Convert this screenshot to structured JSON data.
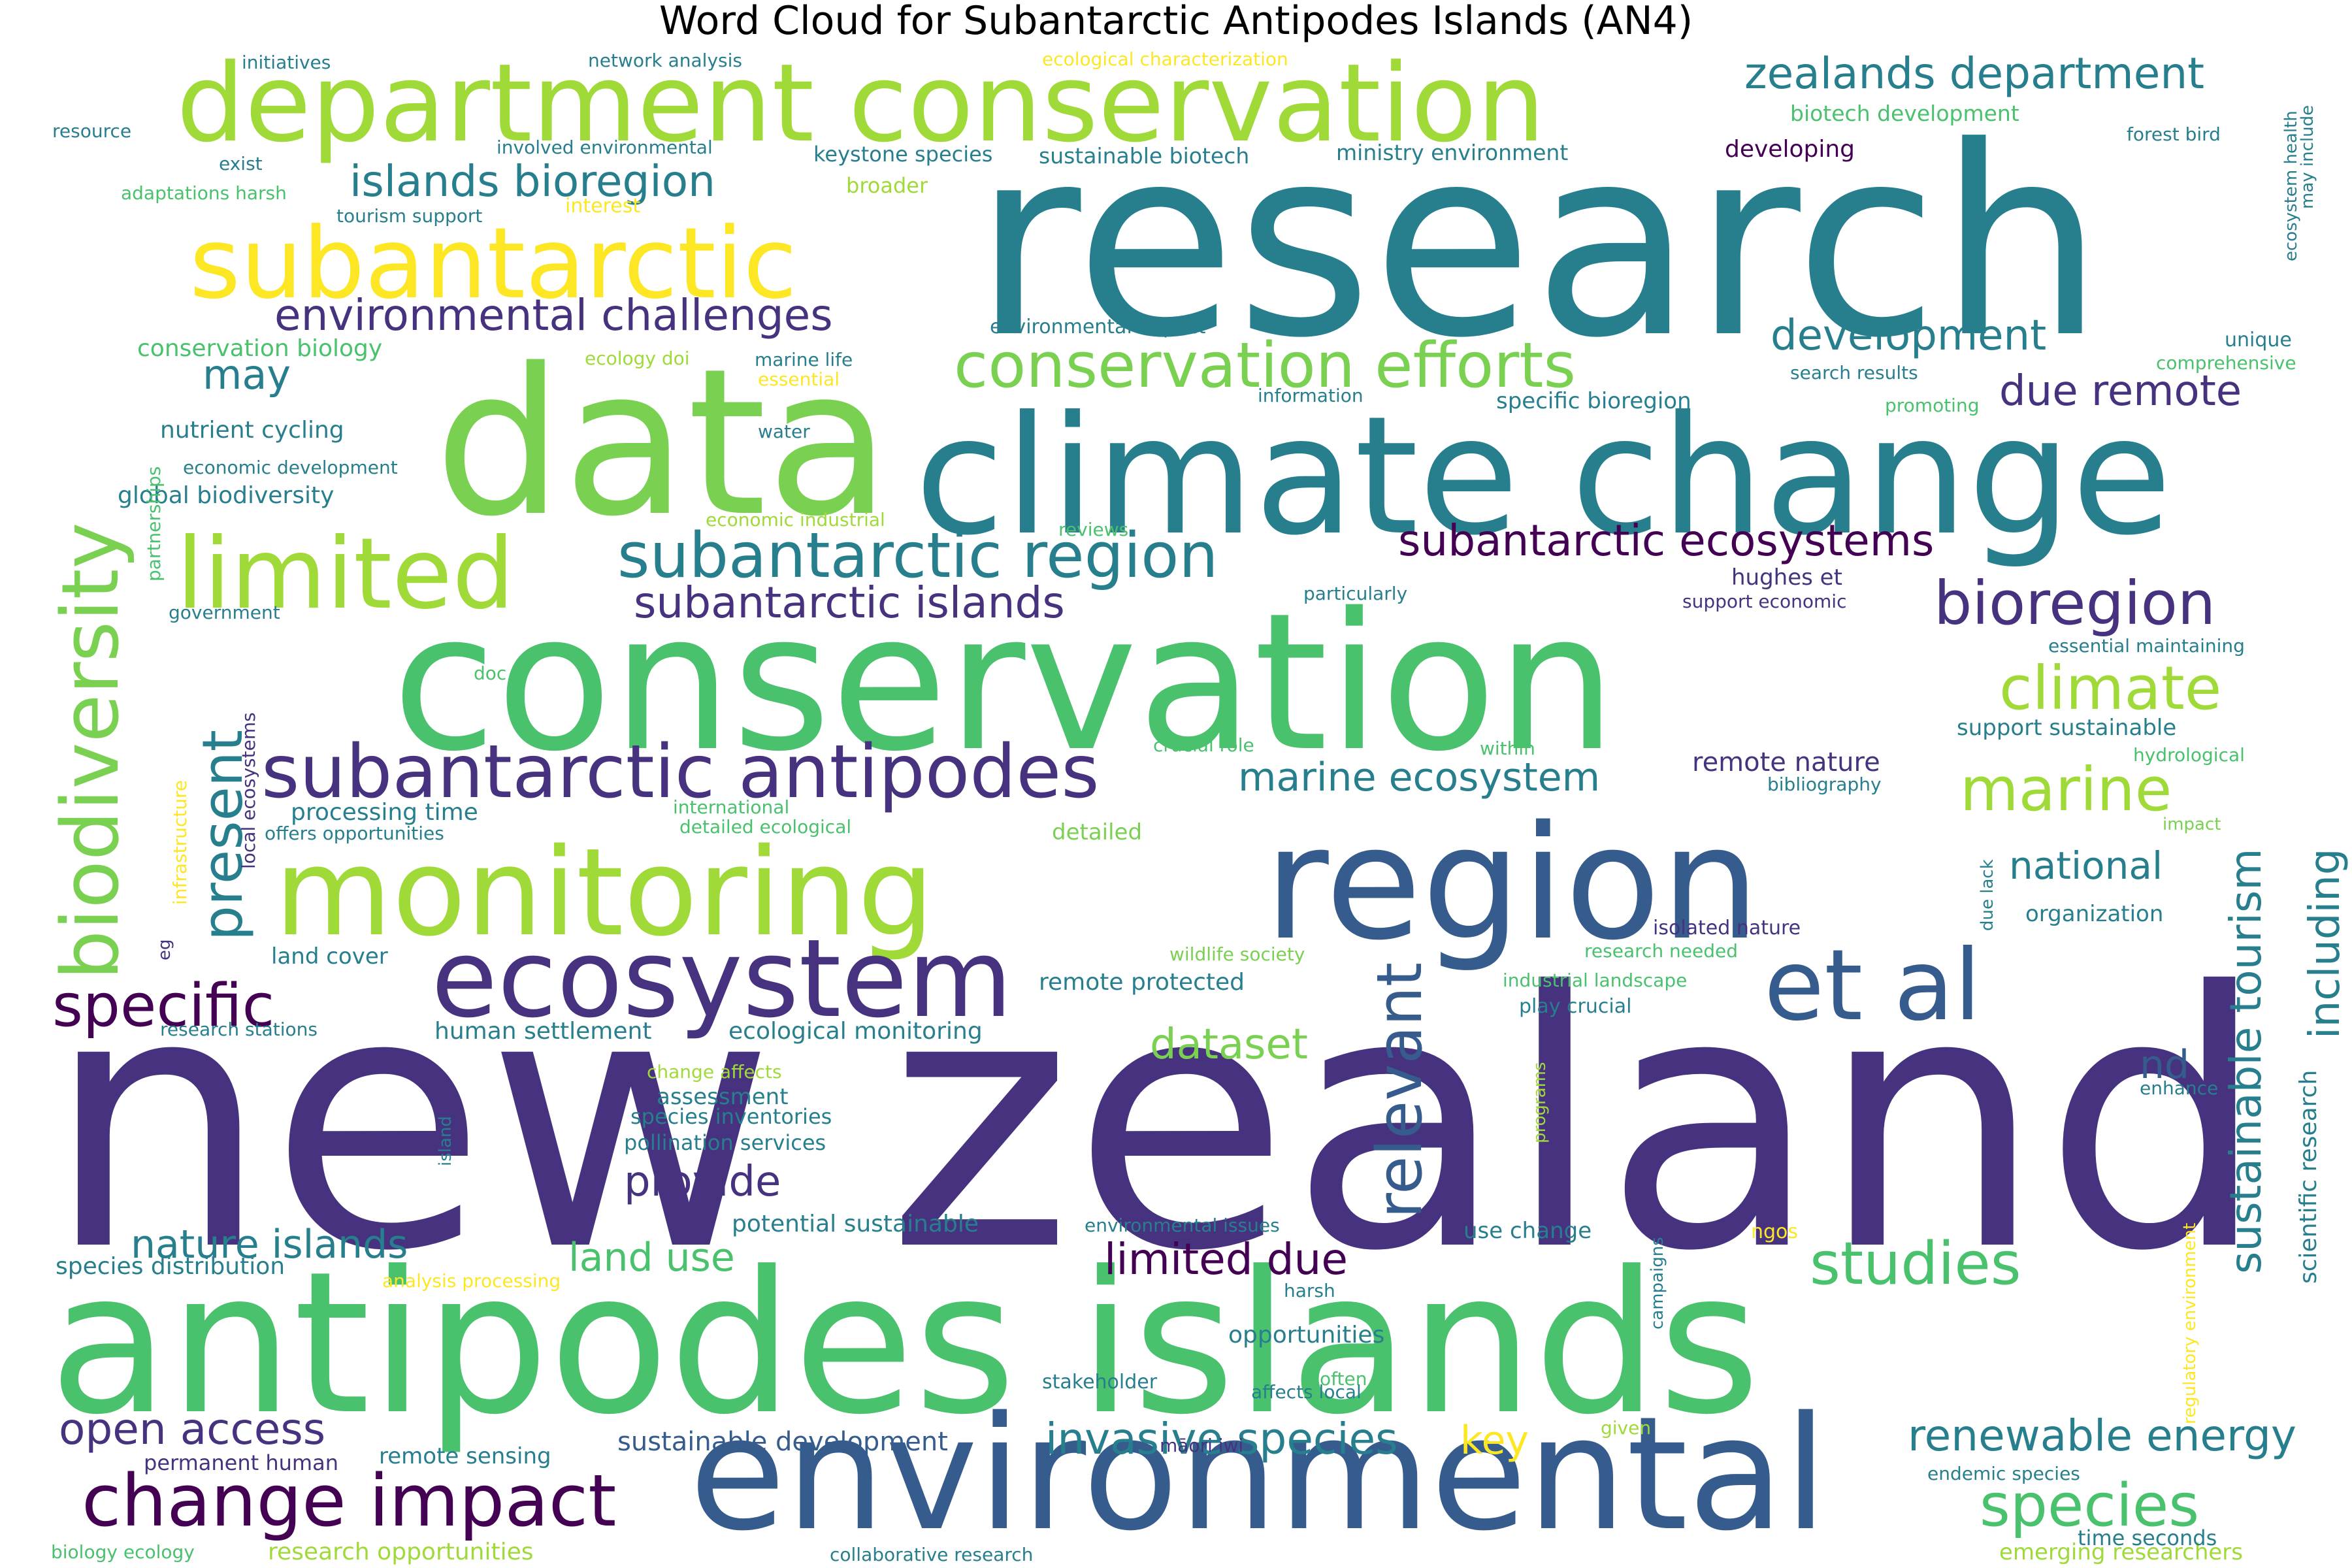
{
  "title": "Word Cloud for Subantarctic Antipodes Islands (AN4)",
  "chart_data": {
    "type": "wordcloud",
    "title": "Word Cloud for Subantarctic Antipodes Islands (AN4)",
    "words": [
      {
        "text": "new zealand",
        "weight": 1.0,
        "color": "#46327e"
      },
      {
        "text": "research",
        "weight": 0.9,
        "color": "#277f8e"
      },
      {
        "text": "antipodes islands",
        "weight": 0.85,
        "color": "#4ac16d"
      },
      {
        "text": "conservation",
        "weight": 0.8,
        "color": "#4ac16d"
      },
      {
        "text": "data",
        "weight": 0.75,
        "color": "#7ad151"
      },
      {
        "text": "climate change",
        "weight": 0.7,
        "color": "#277f8e"
      },
      {
        "text": "region",
        "weight": 0.65,
        "color": "#365c8d"
      },
      {
        "text": "environmental",
        "weight": 0.62,
        "color": "#365c8d"
      },
      {
        "text": "department conservation",
        "weight": 0.6,
        "color": "#a0da39"
      },
      {
        "text": "monitoring",
        "weight": 0.55,
        "color": "#a0da39"
      },
      {
        "text": "biodiversity",
        "weight": 0.52,
        "color": "#7ad151"
      },
      {
        "text": "subantarctic",
        "weight": 0.5,
        "color": "#fde725"
      },
      {
        "text": "ecosystem",
        "weight": 0.48,
        "color": "#46327e"
      },
      {
        "text": "limited",
        "weight": 0.47,
        "color": "#a0da39"
      },
      {
        "text": "et al",
        "weight": 0.45,
        "color": "#365c8d"
      },
      {
        "text": "subantarctic antipodes",
        "weight": 0.4,
        "color": "#46327e"
      },
      {
        "text": "change impact",
        "weight": 0.36,
        "color": "#440154"
      },
      {
        "text": "relevant",
        "weight": 0.34,
        "color": "#365c8d"
      },
      {
        "text": "conservation efforts",
        "weight": 0.34,
        "color": "#7ad151"
      },
      {
        "text": "subantarctic region",
        "weight": 0.33,
        "color": "#277f8e"
      },
      {
        "text": "studies",
        "weight": 0.33,
        "color": "#4ac16d"
      },
      {
        "text": "species",
        "weight": 0.32,
        "color": "#4ac16d"
      },
      {
        "text": "marine",
        "weight": 0.32,
        "color": "#a0da39"
      },
      {
        "text": "specific",
        "weight": 0.3,
        "color": "#440154"
      },
      {
        "text": "bioregion",
        "weight": 0.3,
        "color": "#46327e"
      },
      {
        "text": "climate",
        "weight": 0.3,
        "color": "#a0da39"
      },
      {
        "text": "present",
        "weight": 0.3,
        "color": "#277f8e"
      },
      {
        "text": "sustainable tourism",
        "weight": 0.27,
        "color": "#277f8e"
      },
      {
        "text": "islands bioregion",
        "weight": 0.27,
        "color": "#277f8e"
      },
      {
        "text": "zealands department",
        "weight": 0.27,
        "color": "#277f8e"
      },
      {
        "text": "subantarctic ecosystems",
        "weight": 0.26,
        "color": "#440154"
      },
      {
        "text": "environmental challenges",
        "weight": 0.26,
        "color": "#46327e"
      },
      {
        "text": "subantarctic islands",
        "weight": 0.26,
        "color": "#46327e"
      },
      {
        "text": "open access",
        "weight": 0.26,
        "color": "#46327e"
      },
      {
        "text": "invasive species",
        "weight": 0.26,
        "color": "#277f8e"
      },
      {
        "text": "renewable energy",
        "weight": 0.26,
        "color": "#277f8e"
      },
      {
        "text": "limited due",
        "weight": 0.26,
        "color": "#440154"
      },
      {
        "text": "nature islands",
        "weight": 0.26,
        "color": "#277f8e"
      },
      {
        "text": "due remote",
        "weight": 0.26,
        "color": "#46327e"
      },
      {
        "text": "development",
        "weight": 0.26,
        "color": "#277f8e"
      },
      {
        "text": "marine ecosystem",
        "weight": 0.24,
        "color": "#277f8e"
      },
      {
        "text": "dataset",
        "weight": 0.24,
        "color": "#7ad151"
      },
      {
        "text": "provide",
        "weight": 0.24,
        "color": "#46327e"
      },
      {
        "text": "land use",
        "weight": 0.24,
        "color": "#4ac16d"
      },
      {
        "text": "including",
        "weight": 0.24,
        "color": "#277f8e"
      },
      {
        "text": "may",
        "weight": 0.24,
        "color": "#277f8e"
      },
      {
        "text": "national",
        "weight": 0.22,
        "color": "#277f8e"
      },
      {
        "text": "key",
        "weight": 0.22,
        "color": "#fde725"
      },
      {
        "text": "nd",
        "weight": 0.22,
        "color": "#365c8d"
      },
      {
        "text": "sustainable development",
        "weight": 0.18,
        "color": "#365c8d"
      },
      {
        "text": "remote nature",
        "weight": 0.17,
        "color": "#46327e"
      },
      {
        "text": "scientific research",
        "weight": 0.16,
        "color": "#277f8e"
      },
      {
        "text": "conservation biology",
        "weight": 0.15,
        "color": "#4ac16d"
      },
      {
        "text": "nutrient cycling",
        "weight": 0.15,
        "color": "#277f8e"
      },
      {
        "text": "global biodiversity",
        "weight": 0.15,
        "color": "#277f8e"
      },
      {
        "text": "processing time",
        "weight": 0.15,
        "color": "#277f8e"
      },
      {
        "text": "potential sustainable",
        "weight": 0.15,
        "color": "#277f8e"
      },
      {
        "text": "remote protected",
        "weight": 0.15,
        "color": "#277f8e"
      },
      {
        "text": "human settlement",
        "weight": 0.15,
        "color": "#277f8e"
      },
      {
        "text": "ecological monitoring",
        "weight": 0.15,
        "color": "#277f8e"
      },
      {
        "text": "species distribution",
        "weight": 0.15,
        "color": "#277f8e"
      },
      {
        "text": "opportunities",
        "weight": 0.15,
        "color": "#277f8e"
      },
      {
        "text": "support sustainable",
        "weight": 0.15,
        "color": "#277f8e"
      },
      {
        "text": "organization",
        "weight": 0.15,
        "color": "#277f8e"
      },
      {
        "text": "hughes et",
        "weight": 0.15,
        "color": "#46327e"
      },
      {
        "text": "developing",
        "weight": 0.15,
        "color": "#440154"
      },
      {
        "text": "specific bioregion",
        "weight": 0.15,
        "color": "#277f8e"
      },
      {
        "text": "remote sensing",
        "weight": 0.15,
        "color": "#277f8e"
      },
      {
        "text": "land cover",
        "weight": 0.15,
        "color": "#277f8e"
      },
      {
        "text": "use change",
        "weight": 0.15,
        "color": "#277f8e"
      },
      {
        "text": "detailed",
        "weight": 0.15,
        "color": "#7ad151"
      },
      {
        "text": "ministry environment",
        "weight": 0.14,
        "color": "#277f8e"
      },
      {
        "text": "sustainable biotech",
        "weight": 0.14,
        "color": "#277f8e"
      },
      {
        "text": "biotech development",
        "weight": 0.14,
        "color": "#4ac16d"
      },
      {
        "text": "keystone species",
        "weight": 0.14,
        "color": "#277f8e"
      },
      {
        "text": "permanent human",
        "weight": 0.14,
        "color": "#46327e"
      },
      {
        "text": "research opportunities",
        "weight": 0.14,
        "color": "#a0da39"
      },
      {
        "text": "assessment",
        "weight": 0.14,
        "color": "#277f8e"
      },
      {
        "text": "pollination services",
        "weight": 0.14,
        "color": "#277f8e"
      },
      {
        "text": "species inventories",
        "weight": 0.14,
        "color": "#277f8e"
      },
      {
        "text": "broader",
        "weight": 0.14,
        "color": "#a0da39"
      },
      {
        "text": "emerging researchers",
        "weight": 0.14,
        "color": "#a0da39"
      },
      {
        "text": "time seconds",
        "weight": 0.14,
        "color": "#277f8e"
      },
      {
        "text": "stakeholder",
        "weight": 0.13,
        "color": "#277f8e"
      },
      {
        "text": "initiatives",
        "weight": 0.12,
        "color": "#277f8e"
      },
      {
        "text": "network analysis",
        "weight": 0.12,
        "color": "#277f8e"
      },
      {
        "text": "ecological characterization",
        "weight": 0.12,
        "color": "#fde725"
      },
      {
        "text": "resource",
        "weight": 0.12,
        "color": "#277f8e"
      },
      {
        "text": "exist",
        "weight": 0.12,
        "color": "#277f8e"
      },
      {
        "text": "involved environmental",
        "weight": 0.12,
        "color": "#277f8e"
      },
      {
        "text": "adaptations harsh",
        "weight": 0.12,
        "color": "#4ac16d"
      },
      {
        "text": "tourism support",
        "weight": 0.12,
        "color": "#277f8e"
      },
      {
        "text": "interest",
        "weight": 0.12,
        "color": "#fde725"
      },
      {
        "text": "forest bird",
        "weight": 0.12,
        "color": "#277f8e"
      },
      {
        "text": "ecosystem health",
        "weight": 0.12,
        "color": "#277f8e"
      },
      {
        "text": "may include",
        "weight": 0.12,
        "color": "#277f8e"
      },
      {
        "text": "environmental impact",
        "weight": 0.12,
        "color": "#277f8e"
      },
      {
        "text": "unique",
        "weight": 0.12,
        "color": "#277f8e"
      },
      {
        "text": "comprehensive",
        "weight": 0.12,
        "color": "#4ac16d"
      },
      {
        "text": "search results",
        "weight": 0.12,
        "color": "#277f8e"
      },
      {
        "text": "ecology doi",
        "weight": 0.12,
        "color": "#a0da39"
      },
      {
        "text": "marine life",
        "weight": 0.12,
        "color": "#277f8e"
      },
      {
        "text": "essential",
        "weight": 0.12,
        "color": "#fde725"
      },
      {
        "text": "information",
        "weight": 0.12,
        "color": "#277f8e"
      },
      {
        "text": "promoting",
        "weight": 0.12,
        "color": "#4ac16d"
      },
      {
        "text": "partnerships",
        "weight": 0.12,
        "color": "#4ac16d"
      },
      {
        "text": "economic development",
        "weight": 0.12,
        "color": "#277f8e"
      },
      {
        "text": "water",
        "weight": 0.12,
        "color": "#277f8e"
      },
      {
        "text": "economic industrial",
        "weight": 0.12,
        "color": "#a0da39"
      },
      {
        "text": "reviews",
        "weight": 0.12,
        "color": "#4ac16d"
      },
      {
        "text": "particularly",
        "weight": 0.12,
        "color": "#277f8e"
      },
      {
        "text": "support economic",
        "weight": 0.12,
        "color": "#46327e"
      },
      {
        "text": "government",
        "weight": 0.12,
        "color": "#277f8e"
      },
      {
        "text": "essential maintaining",
        "weight": 0.12,
        "color": "#277f8e"
      },
      {
        "text": "doc",
        "weight": 0.12,
        "color": "#4ac16d"
      },
      {
        "text": "local ecosystems",
        "weight": 0.12,
        "color": "#46327e"
      },
      {
        "text": "infrastructure",
        "weight": 0.12,
        "color": "#fde725"
      },
      {
        "text": "crucial role",
        "weight": 0.12,
        "color": "#4ac16d"
      },
      {
        "text": "within",
        "weight": 0.12,
        "color": "#4ac16d"
      },
      {
        "text": "hydrological",
        "weight": 0.12,
        "color": "#4ac16d"
      },
      {
        "text": "bibliography",
        "weight": 0.12,
        "color": "#277f8e"
      },
      {
        "text": "international",
        "weight": 0.12,
        "color": "#4ac16d"
      },
      {
        "text": "detailed ecological",
        "weight": 0.12,
        "color": "#4ac16d"
      },
      {
        "text": "offers opportunities",
        "weight": 0.12,
        "color": "#277f8e"
      },
      {
        "text": "impact",
        "weight": 0.12,
        "color": "#7ad151"
      },
      {
        "text": "due lack",
        "weight": 0.12,
        "color": "#277f8e"
      },
      {
        "text": "isolated nature",
        "weight": 0.12,
        "color": "#46327e"
      },
      {
        "text": "research needed",
        "weight": 0.12,
        "color": "#4ac16d"
      },
      {
        "text": "eg",
        "weight": 0.12,
        "color": "#46327e"
      },
      {
        "text": "wildlife society",
        "weight": 0.12,
        "color": "#7ad151"
      },
      {
        "text": "industrial landscape",
        "weight": 0.12,
        "color": "#4ac16d"
      },
      {
        "text": "play crucial",
        "weight": 0.12,
        "color": "#277f8e"
      },
      {
        "text": "research stations",
        "weight": 0.12,
        "color": "#277f8e"
      },
      {
        "text": "change affects",
        "weight": 0.12,
        "color": "#a0da39"
      },
      {
        "text": "island",
        "weight": 0.12,
        "color": "#277f8e"
      },
      {
        "text": "programs",
        "weight": 0.12,
        "color": "#a0da39"
      },
      {
        "text": "enhance",
        "weight": 0.12,
        "color": "#277f8e"
      },
      {
        "text": "regulatory environment",
        "weight": 0.12,
        "color": "#fde725"
      },
      {
        "text": "environmental issues",
        "weight": 0.12,
        "color": "#277f8e"
      },
      {
        "text": "ngos",
        "weight": 0.12,
        "color": "#fde725"
      },
      {
        "text": "campaigns",
        "weight": 0.12,
        "color": "#277f8e"
      },
      {
        "text": "analysis processing",
        "weight": 0.12,
        "color": "#fde725"
      },
      {
        "text": "harsh",
        "weight": 0.12,
        "color": "#277f8e"
      },
      {
        "text": "often",
        "weight": 0.12,
        "color": "#4ac16d"
      },
      {
        "text": "affects local",
        "weight": 0.12,
        "color": "#277f8e"
      },
      {
        "text": "māori iwi",
        "weight": 0.12,
        "color": "#46327e"
      },
      {
        "text": "given",
        "weight": 0.12,
        "color": "#a0da39"
      },
      {
        "text": "endemic species",
        "weight": 0.12,
        "color": "#277f8e"
      },
      {
        "text": "biology ecology",
        "weight": 0.12,
        "color": "#4ac16d"
      },
      {
        "text": "collaborative research",
        "weight": 0.12,
        "color": "#277f8e"
      }
    ]
  }
}
